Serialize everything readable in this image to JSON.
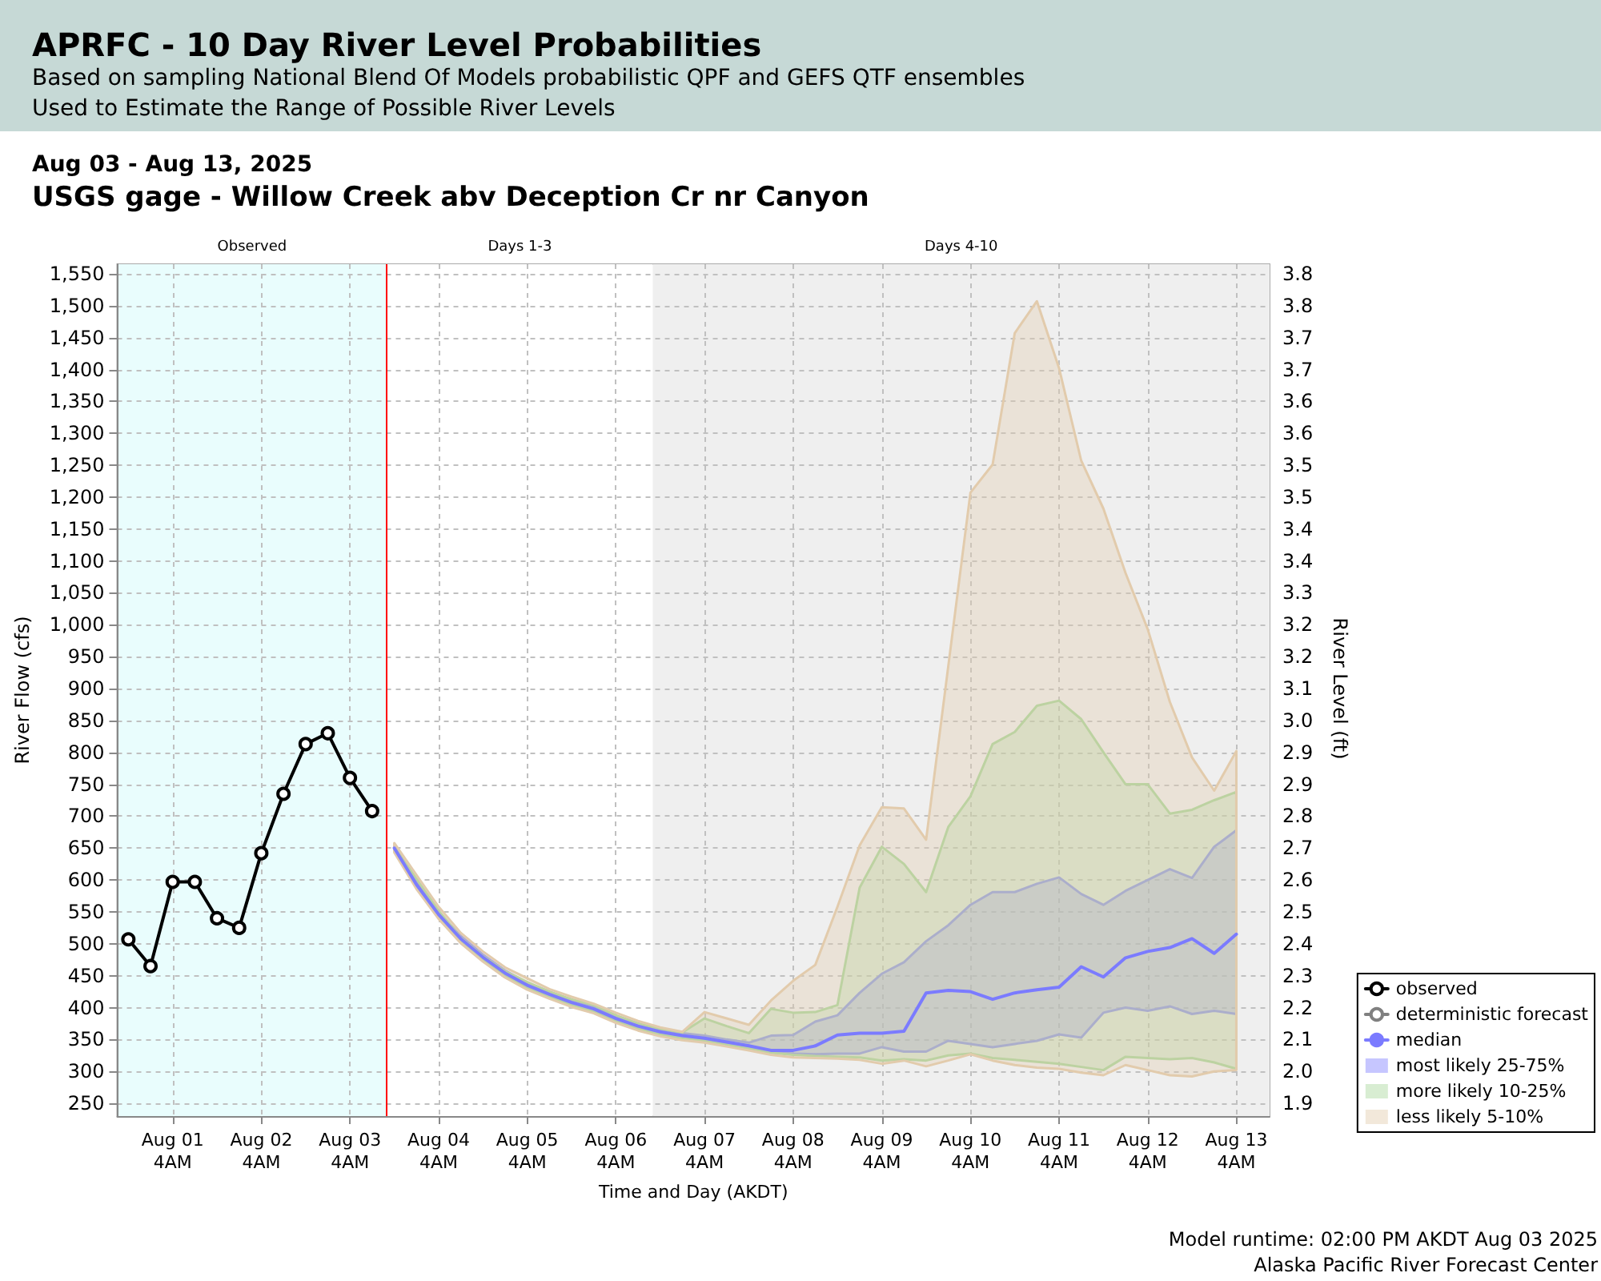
{
  "chart_data": {
    "type": "line",
    "title": "APRFC - 10 Day River Level Probabilities",
    "subtitle": "Based on sampling National Blend Of Models probabilistic QPF and GEFS QTF ensembles\nUsed to Estimate the Range of Possible River Levels",
    "annotations": [
      "Aug 03 - Aug 13, 2025",
      "USGS gage - Willow Creek abv Deception Cr nr Canyon",
      "Model runtime: 02:00 PM AKDT Aug 03 2025",
      "Alaska Pacific River Forecast Center"
    ],
    "xlabel": "Time and Day (AKDT)",
    "ylabel": "River Flow (cfs)",
    "y2label": "River Level (ft)",
    "x": [
      "2025-08-03T16:00",
      "2025-08-03T22:00",
      "2025-08-04T04:00",
      "2025-08-04T10:00",
      "2025-08-04T16:00",
      "2025-08-04T22:00",
      "2025-08-05T04:00",
      "2025-08-05T10:00",
      "2025-08-05T16:00",
      "2025-08-05T22:00",
      "2025-08-06T04:00",
      "2025-08-06T10:00",
      "2025-08-06T16:00",
      "2025-08-06T22:00",
      "2025-08-07T04:00",
      "2025-08-07T10:00",
      "2025-08-07T16:00",
      "2025-08-07T22:00",
      "2025-08-08T04:00",
      "2025-08-08T10:00",
      "2025-08-08T16:00",
      "2025-08-08T22:00",
      "2025-08-09T04:00",
      "2025-08-09T10:00",
      "2025-08-09T16:00",
      "2025-08-09T22:00",
      "2025-08-10T04:00",
      "2025-08-10T10:00",
      "2025-08-10T16:00",
      "2025-08-10T22:00",
      "2025-08-11T04:00",
      "2025-08-11T10:00",
      "2025-08-11T16:00",
      "2025-08-11T22:00",
      "2025-08-12T04:00",
      "2025-08-12T10:00",
      "2025-08-12T16:00",
      "2025-08-12T22:00",
      "2025-08-13T04:00"
    ],
    "series": [
      {
        "name": "observed",
        "color": "#000000",
        "marker": "circle",
        "x": [
          "2025-07-31T16:00",
          "2025-07-31T22:00",
          "2025-08-01T04:00",
          "2025-08-01T10:00",
          "2025-08-01T16:00",
          "2025-08-01T22:00",
          "2025-08-02T04:00",
          "2025-08-02T10:00",
          "2025-08-02T16:00",
          "2025-08-02T22:00",
          "2025-08-03T04:00",
          "2025-08-03T10:00"
        ],
        "values": [
          507,
          465,
          597,
          597,
          540,
          525,
          642,
          735,
          813,
          830,
          760,
          708
        ]
      },
      {
        "name": "deterministic forecast",
        "color": "#808080",
        "marker": "circle",
        "values": [
          null,
          null,
          null,
          null,
          null,
          null,
          null,
          null,
          null,
          null,
          null,
          null,
          null,
          null,
          null,
          null,
          null,
          null,
          null,
          null,
          null,
          null,
          null,
          null,
          null,
          null,
          null,
          null,
          null,
          null,
          null,
          null,
          null,
          null,
          null,
          null,
          null,
          null,
          null
        ]
      },
      {
        "name": "median",
        "color": "#7b7bff",
        "marker": "none",
        "values": [
          650,
          593,
          546,
          508,
          479,
          454,
          435,
          421,
          408,
          398,
          383,
          371,
          362,
          356,
          352,
          346,
          340,
          333,
          333,
          340,
          357,
          360,
          360,
          363,
          423,
          427,
          425,
          413,
          423,
          428,
          432,
          464,
          448,
          478,
          488,
          494,
          508,
          485,
          515
        ]
      },
      {
        "name": "most likely 25-75%",
        "type": "area",
        "color": "#8080ff",
        "values": [
          null,
          null,
          null,
          null,
          null,
          null,
          null,
          null,
          null,
          null,
          null,
          null,
          null,
          null,
          null,
          null,
          null,
          null,
          null,
          null,
          null,
          null,
          null,
          null,
          null,
          null,
          null,
          null,
          null,
          null,
          null,
          null,
          null,
          null,
          null,
          null,
          null,
          null,
          null
        ],
        "lower": [
          648,
          591,
          544,
          506,
          477,
          452,
          433,
          419,
          406,
          396,
          381,
          369,
          360,
          354,
          350,
          344,
          338,
          331,
          328,
          327,
          328,
          328,
          338,
          331,
          331,
          348,
          343,
          338,
          343,
          348,
          358,
          353,
          392,
          400,
          395,
          402,
          390,
          395,
          390
        ],
        "upper": [
          653,
          597,
          550,
          512,
          483,
          458,
          439,
          425,
          412,
          402,
          387,
          375,
          366,
          360,
          356,
          350,
          345,
          356,
          357,
          378,
          388,
          423,
          453,
          471,
          504,
          529,
          561,
          581,
          581,
          594,
          604,
          578,
          561,
          583,
          600,
          617,
          603,
          652,
          678
        ]
      },
      {
        "name": "more likely 10-25%",
        "type": "area",
        "color": "#a8d69c",
        "values": [
          null,
          null,
          null,
          null,
          null,
          null,
          null,
          null,
          null,
          null,
          null,
          null,
          null,
          null,
          null,
          null,
          null,
          null,
          null,
          null,
          null,
          null,
          null,
          null,
          null,
          null,
          null,
          null,
          null,
          null,
          null,
          null,
          null,
          null,
          null,
          null,
          null,
          null,
          null
        ],
        "lower": [
          646,
          589,
          542,
          504,
          475,
          450,
          431,
          417,
          404,
          394,
          379,
          367,
          358,
          352,
          348,
          342,
          336,
          329,
          326,
          324,
          323,
          322,
          317,
          319,
          317,
          325,
          328,
          321,
          318,
          315,
          312,
          307,
          302,
          323,
          321,
          319,
          321,
          314,
          304
        ],
        "upper": [
          652,
          602,
          552,
          510,
          481,
          457,
          440,
          425,
          413,
          404,
          388,
          375,
          367,
          361,
          383,
          371,
          360,
          398,
          392,
          393,
          404,
          588,
          652,
          625,
          581,
          683,
          731,
          813,
          832,
          873,
          881,
          852,
          800,
          750,
          750,
          704,
          710,
          725,
          738
        ]
      },
      {
        "name": "less likely 5-10%",
        "type": "area",
        "color": "#e2cbac",
        "values": [
          null,
          null,
          null,
          null,
          null,
          null,
          null,
          null,
          null,
          null,
          null,
          null,
          null,
          null,
          null,
          null,
          null,
          null,
          null,
          null,
          null,
          null,
          null,
          null,
          null,
          null,
          null,
          null,
          null,
          null,
          null,
          null,
          null,
          null,
          null,
          null,
          null,
          null,
          null
        ],
        "lower": [
          643,
          586,
          539,
          501,
          472,
          447,
          428,
          414,
          401,
          391,
          376,
          364,
          355,
          349,
          345,
          339,
          333,
          326,
          322,
          321,
          320,
          318,
          312,
          317,
          308,
          317,
          327,
          317,
          310,
          306,
          304,
          298,
          294,
          310,
          302,
          294,
          292,
          300,
          302
        ],
        "upper": [
          658,
          608,
          558,
          517,
          488,
          463,
          446,
          429,
          417,
          406,
          392,
          379,
          369,
          362,
          393,
          383,
          373,
          411,
          442,
          467,
          558,
          654,
          714,
          712,
          663,
          935,
          1207,
          1251,
          1457,
          1507,
          1402,
          1257,
          1182,
          1081,
          993,
          879,
          792,
          740,
          802
        ]
      }
    ],
    "xlim": [
      "2025-07-31T13:00",
      "2025-08-13T13:00"
    ],
    "xticks": [
      {
        "value": "2025-08-01T04:00",
        "label": "Aug 01\n4AM"
      },
      {
        "value": "2025-08-02T04:00",
        "label": "Aug 02\n4AM"
      },
      {
        "value": "2025-08-03T04:00",
        "label": "Aug 03\n4AM"
      },
      {
        "value": "2025-08-04T04:00",
        "label": "Aug 04\n4AM"
      },
      {
        "value": "2025-08-05T04:00",
        "label": "Aug 05\n4AM"
      },
      {
        "value": "2025-08-06T04:00",
        "label": "Aug 06\n4AM"
      },
      {
        "value": "2025-08-07T04:00",
        "label": "Aug 07\n4AM"
      },
      {
        "value": "2025-08-08T04:00",
        "label": "Aug 08\n4AM"
      },
      {
        "value": "2025-08-09T04:00",
        "label": "Aug 09\n4AM"
      },
      {
        "value": "2025-08-10T04:00",
        "label": "Aug 10\n4AM"
      },
      {
        "value": "2025-08-11T04:00",
        "label": "Aug 11\n4AM"
      },
      {
        "value": "2025-08-12T04:00",
        "label": "Aug 12\n4AM"
      },
      {
        "value": "2025-08-13T04:00",
        "label": "Aug 13\n4AM"
      }
    ],
    "ylim": [
      230,
      1565
    ],
    "yticks": [
      250,
      300,
      350,
      400,
      450,
      500,
      550,
      600,
      650,
      700,
      750,
      800,
      850,
      900,
      950,
      {
        "value": 1000,
        "label": "1,000"
      },
      {
        "value": 1050,
        "label": "1,050"
      },
      {
        "value": 1100,
        "label": "1,100"
      },
      {
        "value": 1150,
        "label": "1,150"
      },
      {
        "value": 1200,
        "label": "1,200"
      },
      {
        "value": 1250,
        "label": "1,250"
      },
      {
        "value": 1300,
        "label": "1,300"
      },
      {
        "value": 1350,
        "label": "1,350"
      },
      {
        "value": 1400,
        "label": "1,400"
      },
      {
        "value": 1450,
        "label": "1,450"
      },
      {
        "value": 1500,
        "label": "1,500"
      },
      {
        "value": 1550,
        "label": "1,550"
      }
    ],
    "y2_categories": [
      "3.8",
      "3.8",
      "3.7",
      "3.7",
      "3.6",
      "3.6",
      "3.5",
      "3.5",
      "3.4",
      "3.4",
      "3.3",
      "3.2",
      "3.2",
      "3.1",
      "3.0",
      "2.9",
      "2.9",
      "2.8",
      "2.7",
      "2.6",
      "2.5",
      "2.4",
      "2.3",
      "2.2",
      "2.1",
      "2.0",
      "1.9"
    ],
    "bands": [
      {
        "axis": "x",
        "from": "2025-07-31T13:00",
        "to": "2025-08-03T14:00",
        "label": "Observed",
        "color": "#e9fdfd"
      },
      {
        "axis": "x",
        "from": "2025-08-03T14:00",
        "to": "2025-08-06T14:00",
        "label": "Days 1-3",
        "color": "#ffffff"
      },
      {
        "axis": "x",
        "from": "2025-08-06T14:00",
        "to": "2025-08-13T13:00",
        "label": "Days 4-10",
        "color": "#efefef"
      }
    ],
    "ref_lines": [
      {
        "axis": "x",
        "value": "2025-08-03T14:00",
        "label": null,
        "color": "#ff0000"
      }
    ],
    "grid": true,
    "legend": "bottom right",
    "line_style": "solid"
  }
}
